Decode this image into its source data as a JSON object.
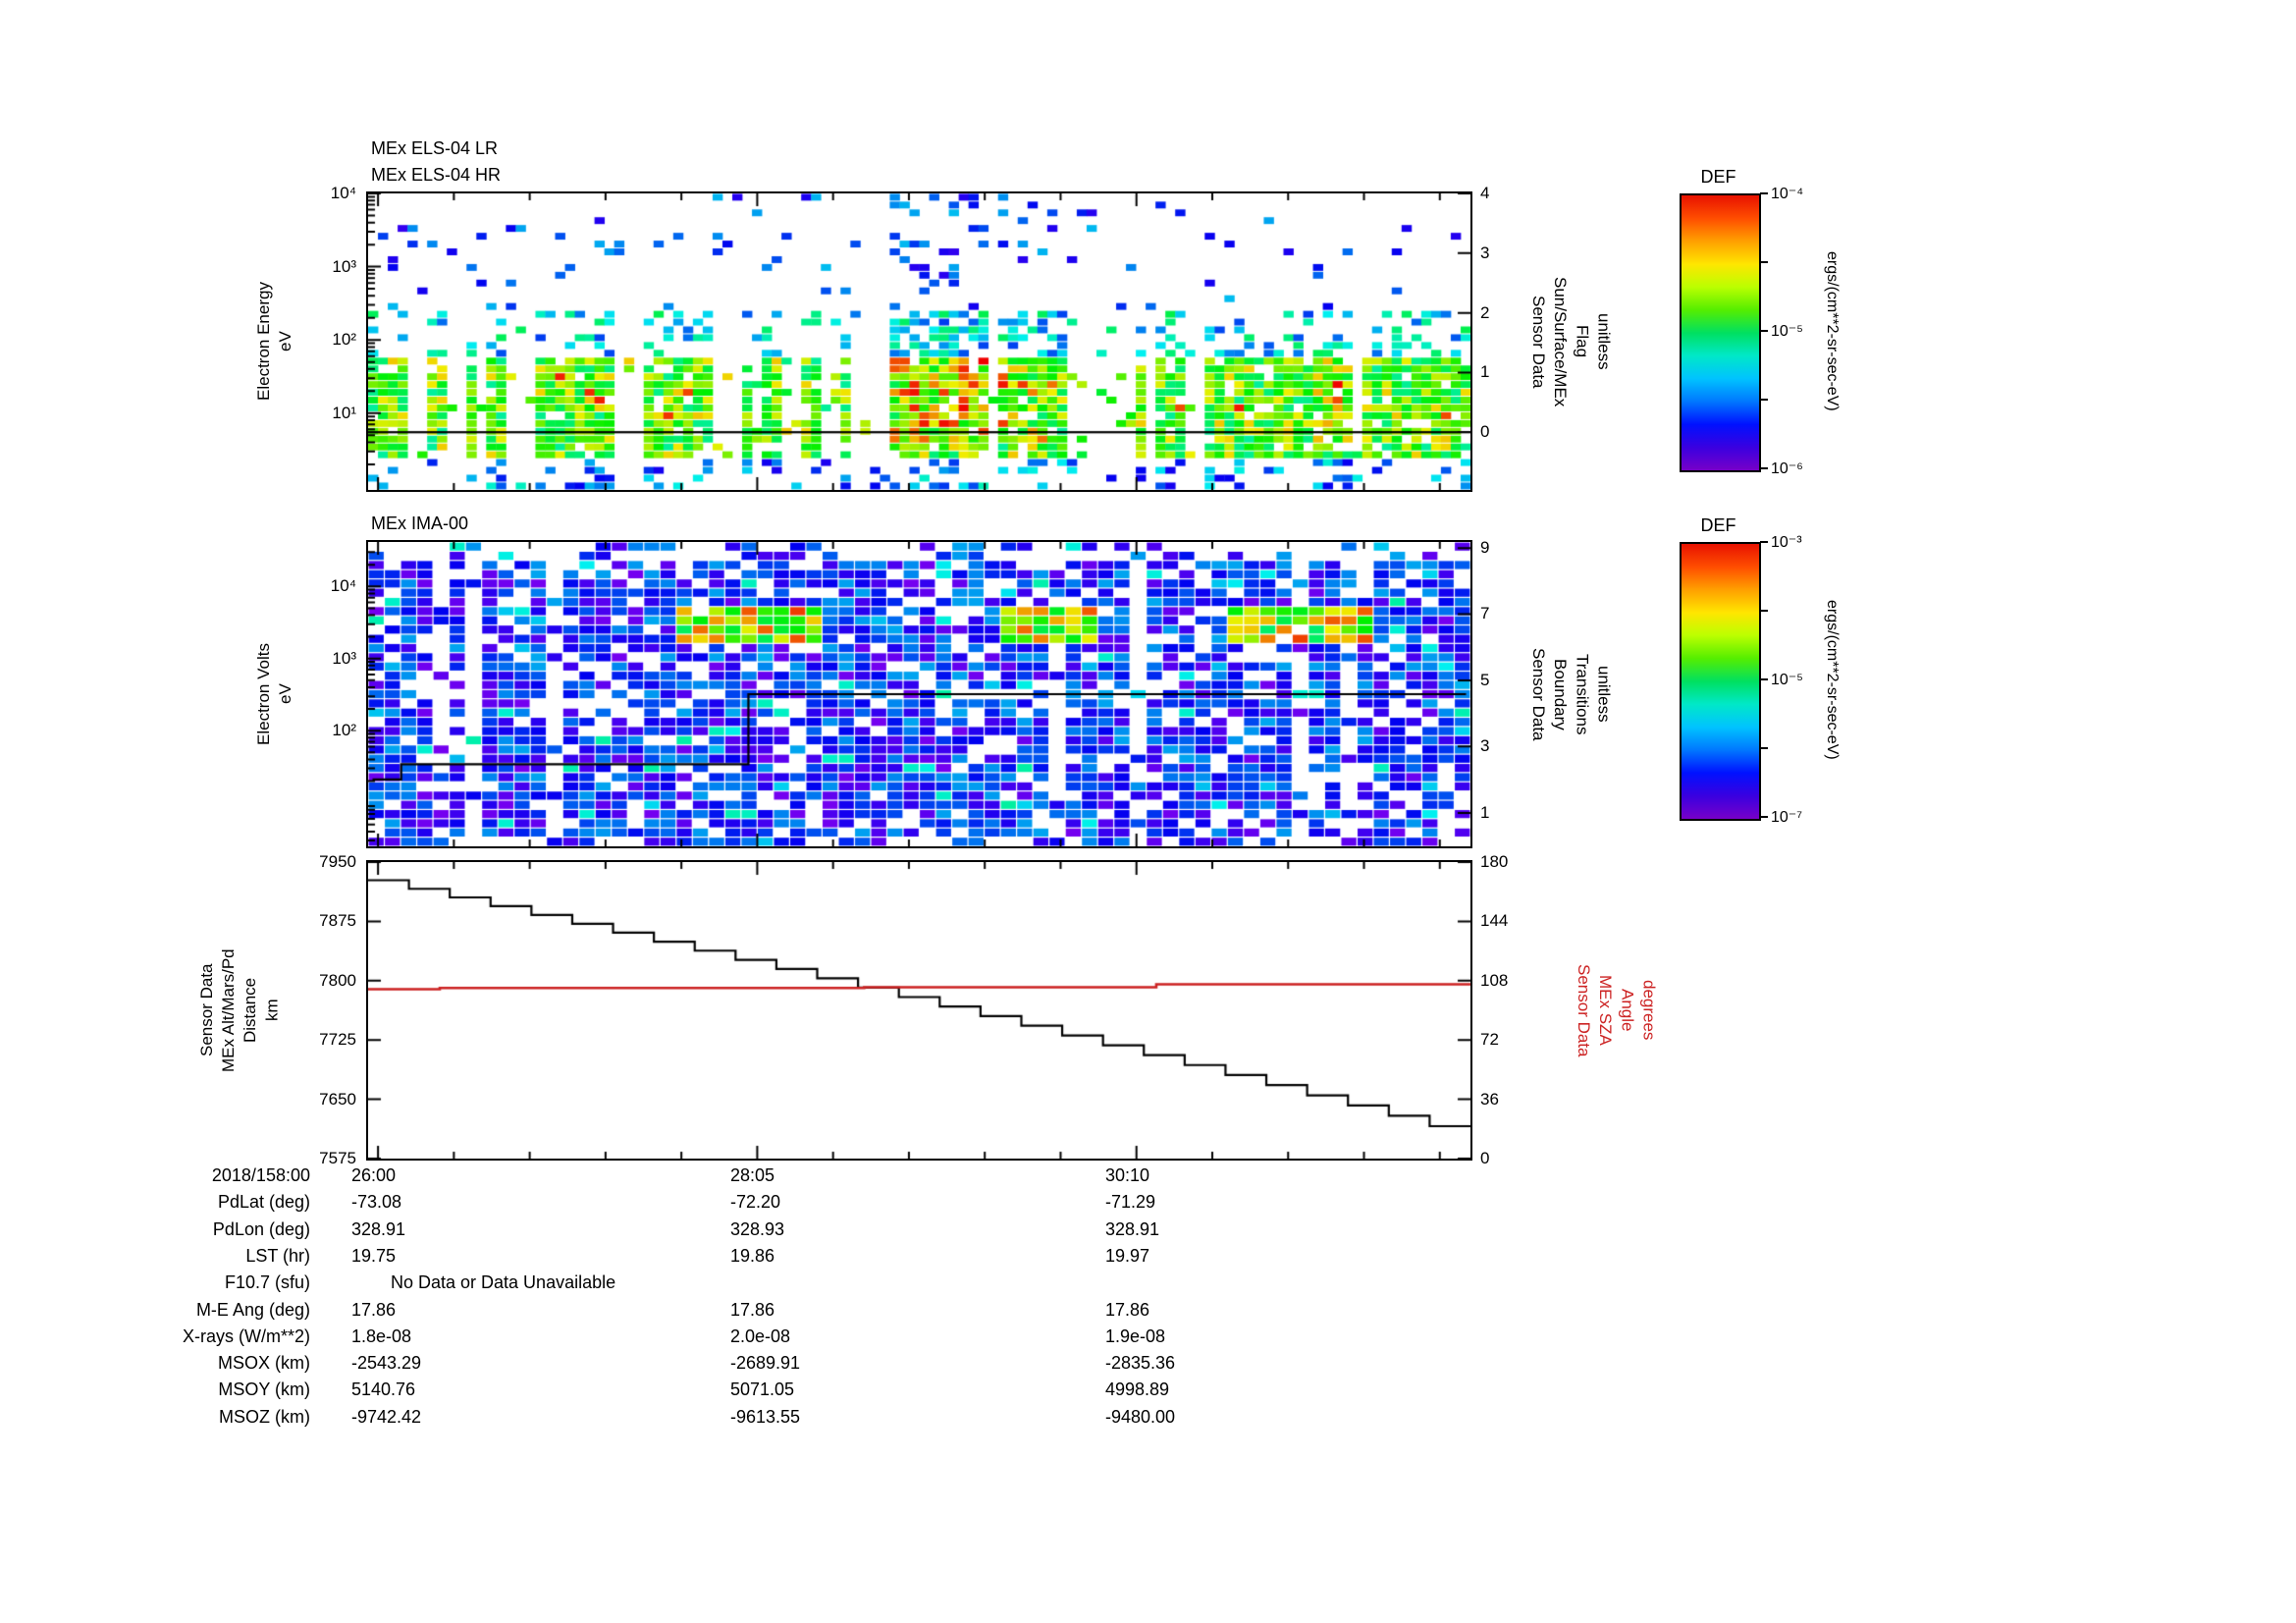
{
  "colors": {
    "axis": "#000000",
    "sza_red": "#cc2222",
    "rainbow": [
      "#7700c8",
      "#3a00e0",
      "#0011ff",
      "#0077ff",
      "#00c3ff",
      "#00e8c8",
      "#00e060",
      "#55ee00",
      "#bbff00",
      "#ffe600",
      "#ffa000",
      "#ff4d00",
      "#e81200"
    ]
  },
  "els": {
    "title_lr": "MEx ELS-04 LR",
    "title_hr": "MEx ELS-04 HR",
    "ylabel": "Electron Energy\neV",
    "right_label": "Sensor Data\nSun/Surface/MEx\nFlag\nunitless",
    "yticks": [
      {
        "label": "10⁴",
        "f": 0.0
      },
      {
        "label": "10³",
        "f": 0.247
      },
      {
        "label": "10²",
        "f": 0.494
      },
      {
        "label": "10¹",
        "f": 0.741
      }
    ],
    "rticks": [
      {
        "label": "4",
        "f": 0.0
      },
      {
        "label": "3",
        "f": 0.201
      },
      {
        "label": "2",
        "f": 0.403
      },
      {
        "label": "1",
        "f": 0.604
      },
      {
        "label": "0",
        "f": 0.805
      }
    ]
  },
  "ima": {
    "title": "MEx IMA-00",
    "ylabel": "Electron Volts\neV",
    "right_label": "Sensor Data\nBoundary\nTransitions\nunitless",
    "yticks": [
      {
        "label": "10⁴",
        "f": 0.146
      },
      {
        "label": "10³",
        "f": 0.383
      },
      {
        "label": "10²",
        "f": 0.62
      }
    ],
    "rticks": [
      {
        "label": "9",
        "f": 0.02
      },
      {
        "label": "7",
        "f": 0.237
      },
      {
        "label": "5",
        "f": 0.455
      },
      {
        "label": "3",
        "f": 0.672
      },
      {
        "label": "1",
        "f": 0.89
      }
    ]
  },
  "alt": {
    "left_label": "Sensor Data\nMEx Alt/Mars/Pd\nDistance\nkm",
    "right_label": "Sensor Data\nMEx SZA\nAngle\ndegrees",
    "yticks": [
      {
        "label": "7950",
        "f": 0.0
      },
      {
        "label": "7875",
        "f": 0.2
      },
      {
        "label": "7800",
        "f": 0.4
      },
      {
        "label": "7725",
        "f": 0.6
      },
      {
        "label": "7650",
        "f": 0.8
      },
      {
        "label": "7575",
        "f": 1.0
      }
    ],
    "rticks": [
      {
        "label": "180",
        "f": 0.0
      },
      {
        "label": "144",
        "f": 0.2
      },
      {
        "label": "108",
        "f": 0.4
      },
      {
        "label": "72",
        "f": 0.6
      },
      {
        "label": "36",
        "f": 0.8
      },
      {
        "label": "0",
        "f": 1.0
      }
    ]
  },
  "xaxis": {
    "date_label": "2018/158:00",
    "ticks": [
      {
        "label": "26:00",
        "f": 0.009
      },
      {
        "label": "28:05",
        "f": 0.353
      },
      {
        "label": "30:10",
        "f": 0.697
      }
    ]
  },
  "colorbars": [
    {
      "title": "DEF",
      "tick_labels": [
        "10⁻⁴",
        "10⁻⁵",
        "10⁻⁶"
      ],
      "units": "ergs/(cm**2-sr-sec-eV)"
    },
    {
      "title": "DEF",
      "tick_labels": [
        "10⁻³",
        "10⁻⁵",
        "10⁻⁷"
      ],
      "units": "ergs/(cm**2-sr-sec-eV)"
    }
  ],
  "table": {
    "rows": [
      {
        "label": "PdLat (deg)",
        "values": [
          "-73.08",
          "-72.20",
          "-71.29"
        ]
      },
      {
        "label": "PdLon (deg)",
        "values": [
          "328.91",
          "328.93",
          "328.91"
        ]
      },
      {
        "label": "LST (hr)",
        "values": [
          "19.75",
          "19.86",
          "19.97"
        ]
      },
      {
        "label": "F10.7 (sfu)",
        "span_text": "No Data or Data Unavailable",
        "values": []
      },
      {
        "label": "M-E Ang (deg)",
        "values": [
          "17.86",
          "17.86",
          "17.86"
        ]
      },
      {
        "label": "X-rays (W/m**2)",
        "values": [
          "1.8e-08",
          "2.0e-08",
          "1.9e-08"
        ]
      },
      {
        "label": "MSOX (km)",
        "values": [
          "-2543.29",
          "-2689.91",
          "-2835.36"
        ]
      },
      {
        "label": "MSOY (km)",
        "values": [
          "5140.76",
          "5071.05",
          "4998.89"
        ]
      },
      {
        "label": "MSOZ (km)",
        "values": [
          "-9742.42",
          "-9613.55",
          "-9480.00"
        ]
      }
    ]
  },
  "chart_data": [
    {
      "type": "heatmap",
      "title": "MEx ELS-04 LR / MEx ELS-04 HR",
      "xlabel": "time, 2018/158 26:00 to ~31:50 (ticks 26:00, 28:05, 30:10)",
      "ylabel": "Electron Energy (eV), log scale 10^0 - 10^4",
      "zlabel": "DEF, ergs/(cm**2-sr-sec-eV), 10^-6 - 10^-4",
      "right_axis": {
        "label": "Sensor Data Sun/Surface/MEx Flag (unitless)",
        "range": [
          0,
          4
        ],
        "flag_value": 0
      },
      "pattern": "sparse blue dashes above ~300 eV; dense green/yellow emission 5-100 eV with red bursts near mid-interval; frequent vertical data gaps; black flag=0 line",
      "gen": {
        "seed": 1158026,
        "cols": 112,
        "rows": 38,
        "gap_run_start": 0.13,
        "gap_run_continue": 0.45,
        "flag_line_f": 0.805,
        "hotspots": [
          {
            "x": 0.515,
            "w": 0.045,
            "boost": 0.45
          },
          {
            "x": 0.6,
            "w": 0.025,
            "boost": 0.22
          },
          {
            "x": 0.875,
            "w": 0.02,
            "boost": 0.22
          }
        ]
      }
    },
    {
      "type": "heatmap",
      "title": "MEx IMA-00",
      "ylabel": "Electron Volts (eV), log scale",
      "zlabel": "DEF, ergs/(cm**2-sr-sec-eV), 10^-7 - 10^-3",
      "right_axis": {
        "label": "Sensor Data Boundary Transitions (unitless)",
        "range": [
          0,
          9
        ]
      },
      "pattern": "dense violet/blue mosaic with white gaps; cyan-green-yellow hot patches near 1-3 keV; black boundary-transition step line rising mid-interval",
      "boundary_line_f": [
        [
          0.004,
          0.03,
          0.78
        ],
        [
          0.03,
          0.345,
          0.73
        ],
        [
          0.345,
          0.996,
          0.5
        ]
      ],
      "gen": {
        "seed": 990934,
        "cols": 68,
        "rows": 33,
        "thin_col_p": 0.12,
        "hotbands": [
          {
            "x0": 0.28,
            "x1": 0.405,
            "y0": 0.2,
            "y1": 0.345
          },
          {
            "x0": 0.575,
            "x1": 0.66,
            "y0": 0.22,
            "y1": 0.34
          },
          {
            "x0": 0.785,
            "x1": 0.905,
            "y0": 0.215,
            "y1": 0.33
          }
        ]
      }
    },
    {
      "type": "line",
      "x_ticks": [
        "26:00",
        "28:05",
        "30:10"
      ],
      "series": [
        {
          "name": "MEx Alt/Mars/Pd Distance",
          "units": "km",
          "color": "#000000",
          "axis": "left",
          "ylim": [
            7575,
            7950
          ],
          "style": "staircase",
          "start": 7927,
          "end": 7616,
          "steps": 27
        },
        {
          "name": "MEx SZA Angle",
          "units": "degrees",
          "color": "#cc2222",
          "axis": "right",
          "ylim": [
            0,
            180
          ],
          "style": "steps",
          "points": [
            [
              0.0,
              102.8
            ],
            [
              0.065,
              103.6
            ],
            [
              0.45,
              104.0
            ],
            [
              0.715,
              105.8
            ],
            [
              1.0,
              106.3
            ]
          ]
        }
      ]
    }
  ]
}
